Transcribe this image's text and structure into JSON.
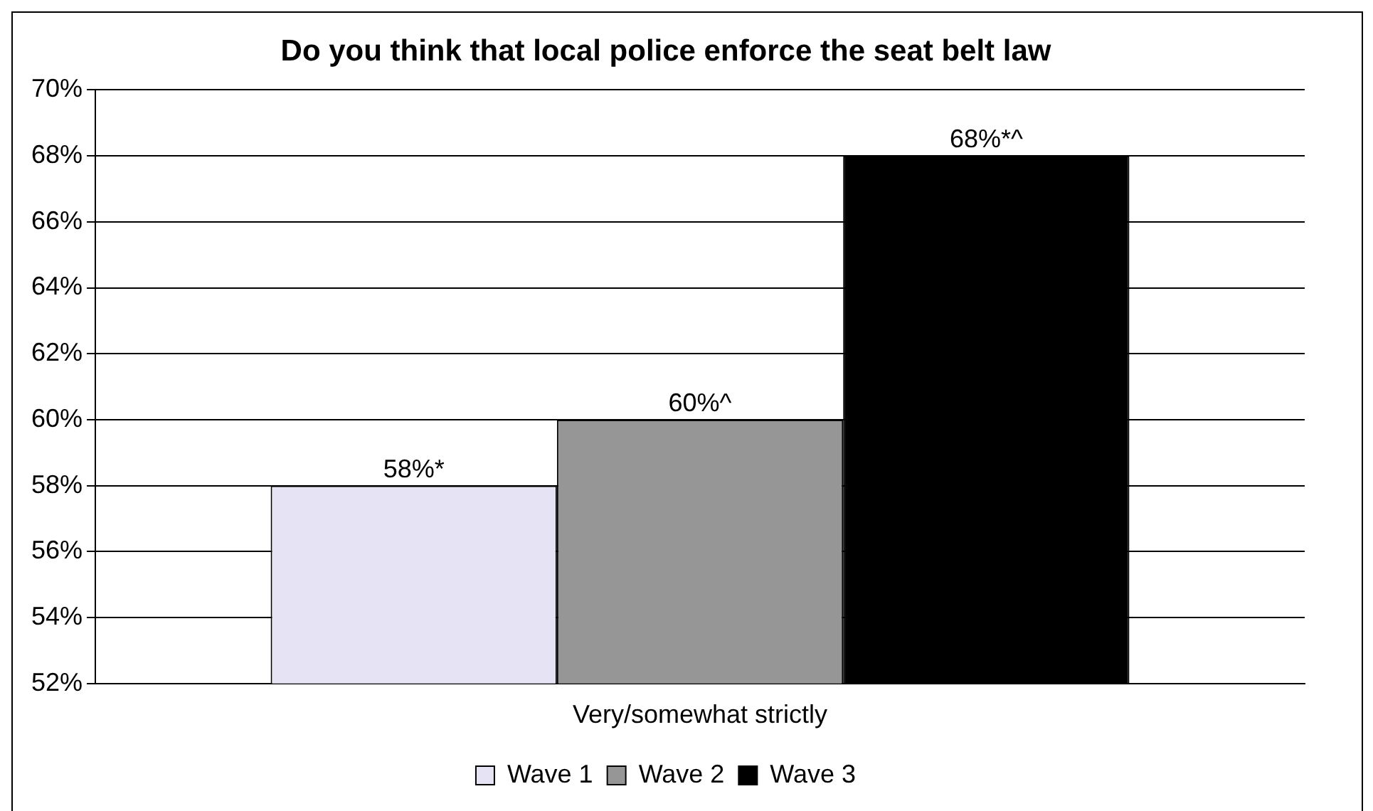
{
  "chart_data": {
    "type": "bar",
    "title": "Do you think that local police enforce the seat belt law",
    "categories": [
      "Very/somewhat strictly"
    ],
    "series": [
      {
        "name": "Wave 1",
        "color": "#e6e4f4",
        "values": [
          58
        ],
        "value_labels": [
          "58%*"
        ]
      },
      {
        "name": "Wave 2",
        "color": "#969696",
        "values": [
          60
        ],
        "value_labels": [
          "60%^"
        ]
      },
      {
        "name": "Wave 3",
        "color": "#000000",
        "values": [
          68
        ],
        "value_labels": [
          "68%*^"
        ]
      }
    ],
    "ylim": [
      52,
      70
    ],
    "yticks": [
      {
        "value": 52,
        "label": "52%"
      },
      {
        "value": 54,
        "label": "54%"
      },
      {
        "value": 56,
        "label": "56%"
      },
      {
        "value": 58,
        "label": "58%"
      },
      {
        "value": 60,
        "label": "60%"
      },
      {
        "value": 62,
        "label": "62%"
      },
      {
        "value": 64,
        "label": "64%"
      },
      {
        "value": 66,
        "label": "66%"
      },
      {
        "value": 68,
        "label": "68%"
      },
      {
        "value": 70,
        "label": "70%"
      }
    ],
    "grid": "y",
    "legend": "bottom"
  }
}
